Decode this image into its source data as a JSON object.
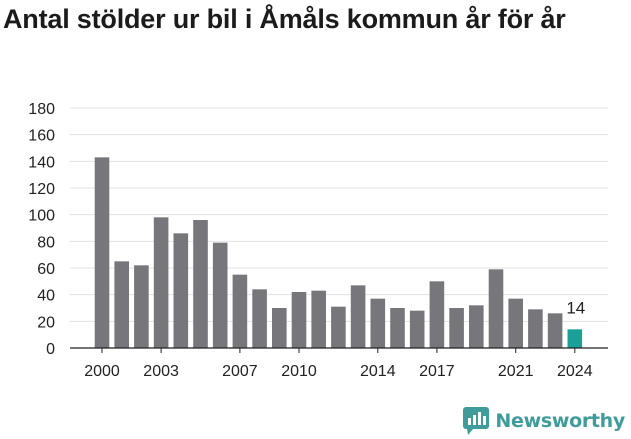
{
  "title": "Antal stölder ur bil i Åmåls kommun år för år",
  "brand": {
    "name": "Newsworthy",
    "logo_icon": "newsworthy-logo-icon",
    "color": "#3f9c9a"
  },
  "colors": {
    "bar": "#77767b",
    "highlight": "#1aa097",
    "grid": "#e3e3e3",
    "axis": "#222222"
  },
  "chart_data": {
    "type": "bar",
    "title": "Antal stölder ur bil i Åmåls kommun år för år",
    "xlabel": "",
    "ylabel": "",
    "categories": [
      "2000",
      "2001",
      "2002",
      "2003",
      "2004",
      "2005",
      "2006",
      "2007",
      "2008",
      "2009",
      "2010",
      "2011",
      "2012",
      "2013",
      "2014",
      "2015",
      "2016",
      "2017",
      "2018",
      "2019",
      "2020",
      "2021",
      "2022",
      "2023",
      "2024"
    ],
    "values": [
      143,
      65,
      62,
      98,
      86,
      96,
      79,
      55,
      44,
      30,
      42,
      43,
      31,
      47,
      37,
      30,
      28,
      50,
      30,
      32,
      59,
      37,
      29,
      26,
      14
    ],
    "highlight_category": "2024",
    "highlight_label": "14",
    "x_tick_labels": [
      "2000",
      "2003",
      "2007",
      "2010",
      "2014",
      "2017",
      "2021",
      "2024"
    ],
    "y_ticks": [
      0,
      20,
      40,
      60,
      80,
      100,
      120,
      140,
      160,
      180
    ],
    "ylim": [
      0,
      180
    ],
    "grid": true,
    "legend": "none"
  }
}
